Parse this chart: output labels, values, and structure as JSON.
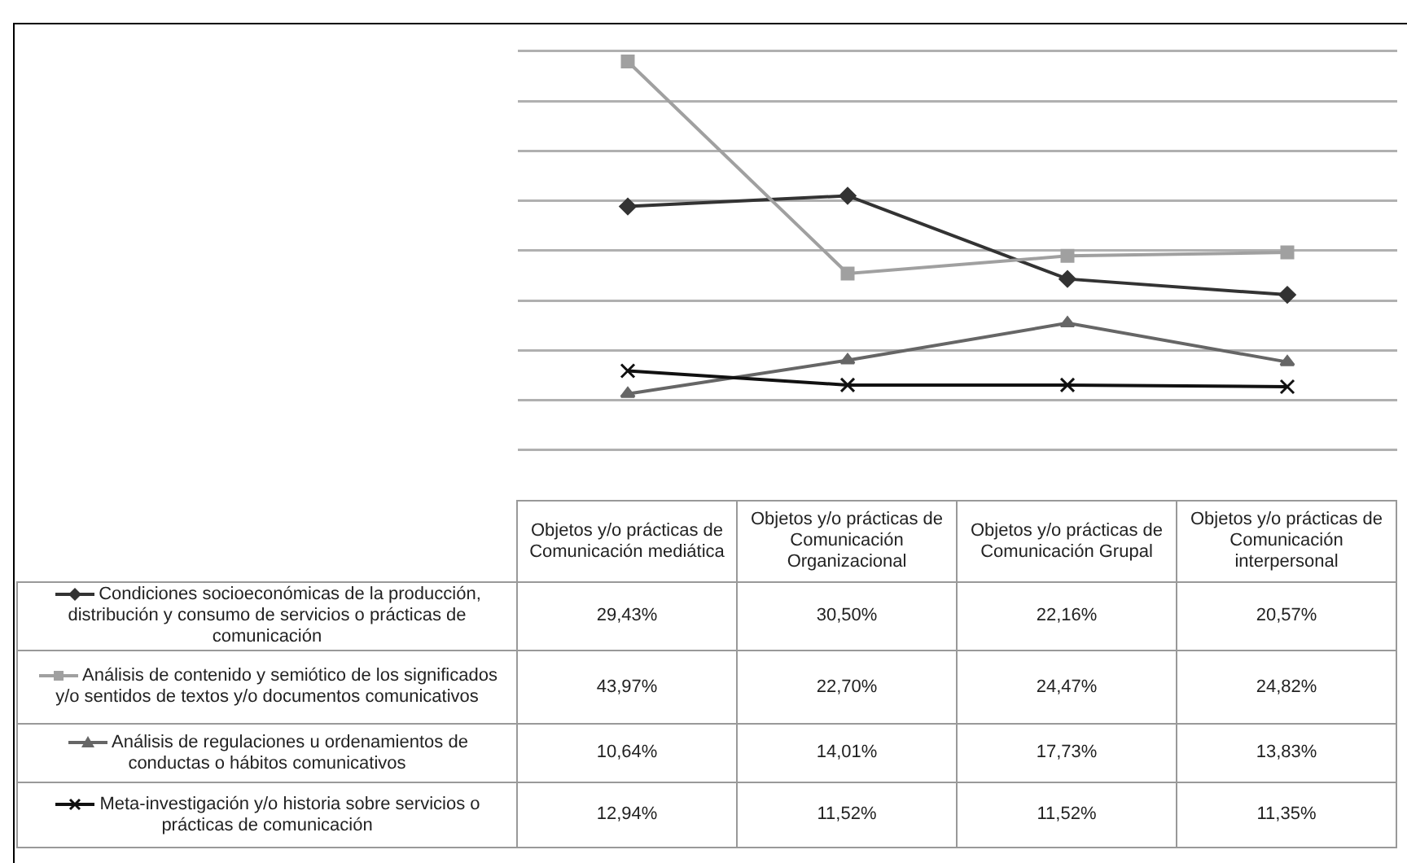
{
  "chart_data": {
    "type": "line",
    "categories": [
      "Objetos y/o prácticas de Comunicación mediática",
      "Objetos y/o prácticas de Comunicación Organizacional",
      "Objetos y/o prácticas de Comunicación Grupal",
      "Objetos y/o prácticas de Comunicación interpersonal"
    ],
    "series": [
      {
        "name": "Condiciones socioeconómicas de la producción, distribución y consumo de servicios o prácticas de comunicación",
        "color": "#333333",
        "marker": "diamond",
        "values": [
          29.43,
          30.5,
          22.16,
          20.57
        ],
        "value_labels": [
          "29,43%",
          "30,50%",
          "22,16%",
          "20,57%"
        ]
      },
      {
        "name": "Análisis de contenido y semiótico de los significados y/o sentidos de textos y/o documentos comunicativos",
        "color": "#a0a0a0",
        "marker": "square",
        "values": [
          43.97,
          22.7,
          24.47,
          24.82
        ],
        "value_labels": [
          "43,97%",
          "22,70%",
          "24,47%",
          "24,82%"
        ]
      },
      {
        "name": "Análisis de regulaciones u ordenamientos de conductas o hábitos comunicativos",
        "color": "#666666",
        "marker": "triangle",
        "values": [
          10.64,
          14.01,
          17.73,
          13.83
        ],
        "value_labels": [
          "10,64%",
          "14,01%",
          "17,73%",
          "13,83%"
        ]
      },
      {
        "name": "Meta-investigación y/o historia sobre servicios o prácticas de comunicación",
        "color": "#111111",
        "marker": "cross",
        "values": [
          12.94,
          11.52,
          11.52,
          11.35
        ],
        "value_labels": [
          "12,94%",
          "11,52%",
          "11,52%",
          "11,35%"
        ]
      }
    ],
    "grid": "y",
    "tick_labels": "x",
    "legend": "bottom left",
    "line_style": "solid"
  }
}
